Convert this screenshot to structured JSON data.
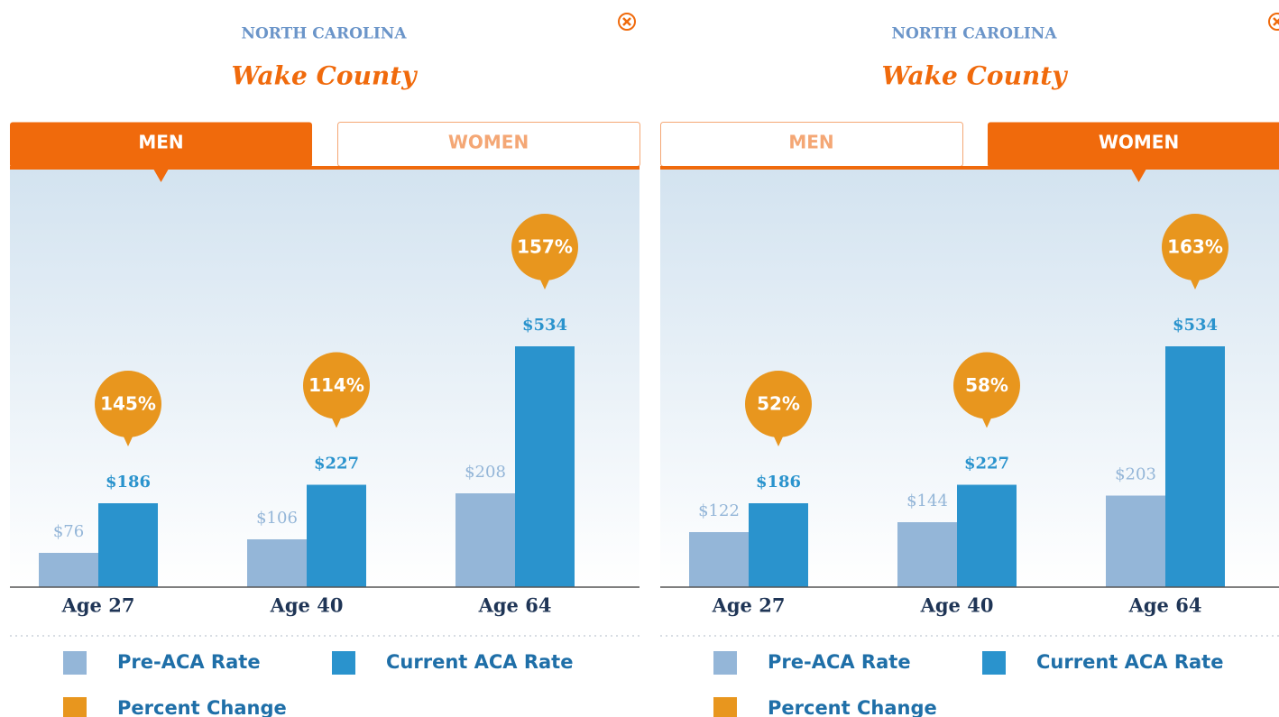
{
  "chart_data": [
    {
      "type": "bar",
      "title": "NORTH CAROLINA",
      "subtitle": "Wake County",
      "tabs": [
        "MEN",
        "WOMEN"
      ],
      "active_tab": 0,
      "categories": [
        "Age 27",
        "Age 40",
        "Age 64"
      ],
      "series": [
        {
          "name": "Pre-ACA Rate",
          "color": "#94b6d8",
          "values": [
            76,
            106,
            208
          ],
          "value_labels": [
            "$76",
            "$106",
            "$208"
          ]
        },
        {
          "name": "Current ACA Rate",
          "color": "#2a93cd",
          "values": [
            186,
            227,
            534
          ],
          "value_labels": [
            "$186",
            "$227",
            "$534"
          ]
        }
      ],
      "percent_change": {
        "name": "Percent Change",
        "color": "#e8961e",
        "values": [
          145,
          114,
          157
        ],
        "value_labels": [
          "145%",
          "114%",
          "157%"
        ]
      },
      "ylim": [
        0,
        1000
      ]
    },
    {
      "type": "bar",
      "title": "NORTH CAROLINA",
      "subtitle": "Wake County",
      "tabs": [
        "MEN",
        "WOMEN"
      ],
      "active_tab": 1,
      "categories": [
        "Age 27",
        "Age 40",
        "Age 64"
      ],
      "series": [
        {
          "name": "Pre-ACA Rate",
          "color": "#94b6d8",
          "values": [
            122,
            144,
            203
          ],
          "value_labels": [
            "$122",
            "$144",
            "$203"
          ]
        },
        {
          "name": "Current ACA Rate",
          "color": "#2a93cd",
          "values": [
            186,
            227,
            534
          ],
          "value_labels": [
            "$186",
            "$227",
            "$534"
          ]
        }
      ],
      "percent_change": {
        "name": "Percent Change",
        "color": "#e8961e",
        "values": [
          52,
          58,
          163
        ],
        "value_labels": [
          "52%",
          "58%",
          "163%"
        ]
      },
      "ylim": [
        0,
        1000
      ]
    }
  ]
}
